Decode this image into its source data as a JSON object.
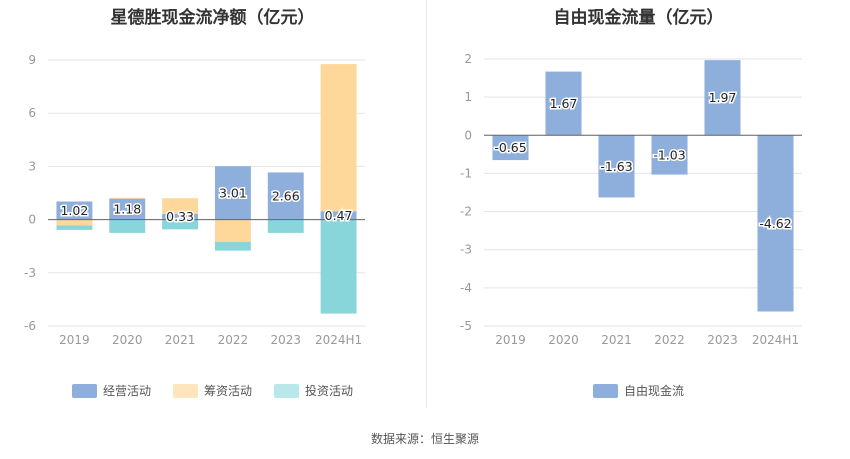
{
  "source": "数据来源：恒生聚源",
  "colors": {
    "operating": "#8eaedc",
    "financing": "#fed89b",
    "investing": "#88d6d9",
    "fcf": "#8eaedc",
    "grid": "#e3e3ea",
    "axis_text": "#999999"
  },
  "chart_data": [
    {
      "type": "bar",
      "stacked": true,
      "title": "星德胜现金流净额（亿元）",
      "categories": [
        "2019",
        "2020",
        "2021",
        "2022",
        "2023",
        "2024H1"
      ],
      "series": [
        {
          "name": "经营活动",
          "color_key": "operating",
          "values": [
            1.02,
            1.18,
            0.33,
            3.01,
            2.66,
            0.47
          ],
          "labels": true
        },
        {
          "name": "筹资活动",
          "color_key": "financing",
          "values": [
            -0.33,
            0.05,
            0.88,
            -1.25,
            0.0,
            8.3
          ],
          "labels": false
        },
        {
          "name": "投资活动",
          "color_key": "investing",
          "values": [
            -0.25,
            -0.75,
            -0.55,
            -0.5,
            -0.75,
            -5.3
          ],
          "labels": false
        }
      ],
      "yticks": [
        9,
        6,
        3,
        0,
        -3,
        -6
      ],
      "ylim": [
        -6,
        9
      ],
      "grid": true,
      "legend_position": "bottom"
    },
    {
      "type": "bar",
      "title": "自由现金流量（亿元）",
      "categories": [
        "2019",
        "2020",
        "2021",
        "2022",
        "2023",
        "2024H1"
      ],
      "series": [
        {
          "name": "自由现金流",
          "color_key": "fcf",
          "values": [
            -0.65,
            1.67,
            -1.63,
            -1.03,
            1.97,
            -4.62
          ],
          "labels": true
        }
      ],
      "yticks": [
        2,
        1,
        0,
        -1,
        -2,
        -3,
        -4,
        -5
      ],
      "ylim": [
        -5,
        2
      ],
      "grid": true,
      "legend_position": "bottom"
    }
  ]
}
